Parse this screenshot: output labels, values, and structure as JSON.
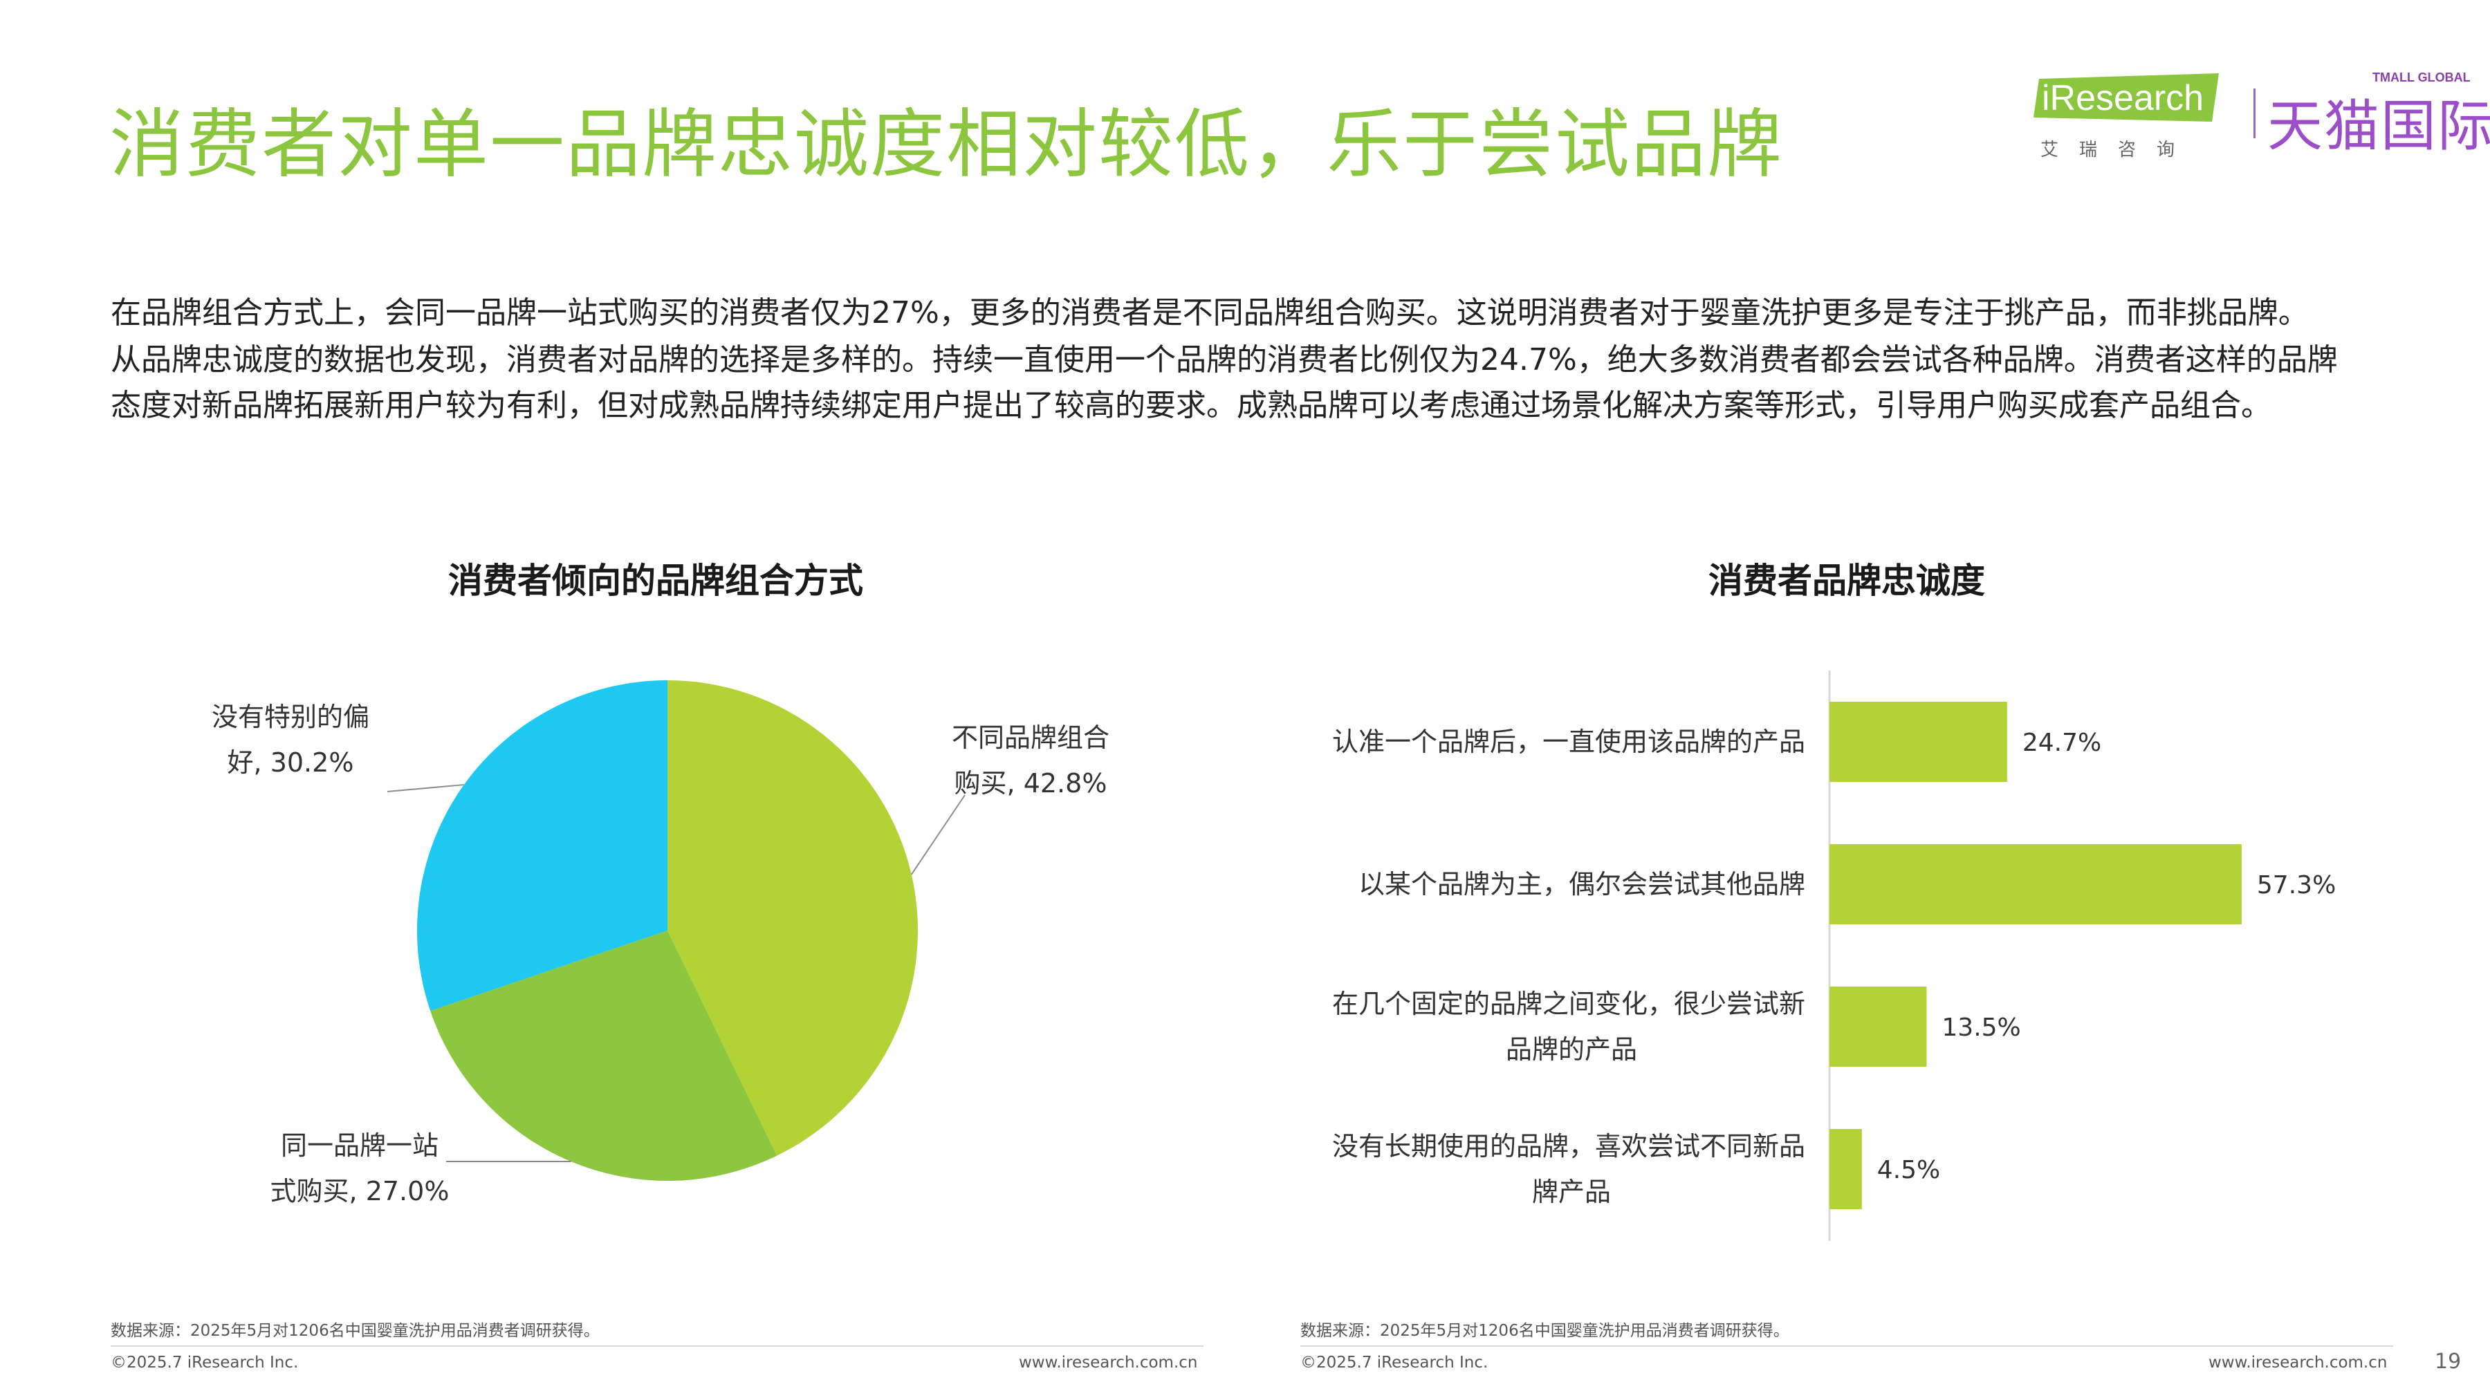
{
  "title": "消费者对单一品牌忠诚度相对较低，乐于尝试品牌",
  "brand": {
    "iresearch": "iResearch",
    "iresearch_sub": "艾瑞咨询",
    "tmall_small": "TMALL GLOBAL",
    "tmall": "天猫国际"
  },
  "paragraph": [
    "在品牌组合方式上，会同一品牌一站式购买的消费者仅为27%，更多的消费者是不同品牌组合购买。这说明消费者对于婴童洗护更多是专注于挑产品，而非挑品牌。",
    "从品牌忠诚度的数据也发现，消费者对品牌的选择是多样的。持续一直使用一个品牌的消费者比例仅为24.7%，绝大多数消费者都会尝试各种品牌。消费者这样的品牌",
    "态度对新品牌拓展新用户较为有利，但对成熟品牌持续绑定用户提出了较高的要求。成熟品牌可以考虑通过场景化解决方案等形式，引导用户购买成套产品组合。"
  ],
  "chart_data": [
    {
      "type": "pie",
      "title": "消费者倾向的品牌组合方式",
      "slices": [
        {
          "label_lines": [
            "不同品牌组合",
            "购买, 42.8%"
          ],
          "value": 42.8,
          "color": "#b2d235"
        },
        {
          "label_lines": [
            "同一品牌一站",
            "式购买, 27.0%"
          ],
          "value": 27.0,
          "color": "#8dc63f"
        },
        {
          "label_lines": [
            "没有特别的偏",
            "好, 30.2%"
          ],
          "value": 30.2,
          "color": "#1fc8f0"
        }
      ]
    },
    {
      "type": "bar",
      "orientation": "horizontal",
      "title": "消费者品牌忠诚度",
      "color": "#b2d235",
      "xlim": [
        0,
        60
      ],
      "categories": [
        [
          "认准一个品牌后，一直使用该品牌的产品"
        ],
        [
          "以某个品牌为主，偶尔会尝试其他品牌"
        ],
        [
          "在几个固定的品牌之间变化，很少尝试新",
          "品牌的产品"
        ],
        [
          "没有长期使用的品牌，喜欢尝试不同新品",
          "牌产品"
        ]
      ],
      "values": [
        24.7,
        57.3,
        13.5,
        4.5
      ],
      "value_labels": [
        "24.7%",
        "57.3%",
        "13.5%",
        "4.5%"
      ]
    }
  ],
  "footer": {
    "source": "数据来源：2025年5月对1206名中国婴童洗护用品消费者调研获得。",
    "copyright": "©2025.7 iResearch Inc.",
    "url": "www.iresearch.com.cn",
    "page": "19"
  }
}
